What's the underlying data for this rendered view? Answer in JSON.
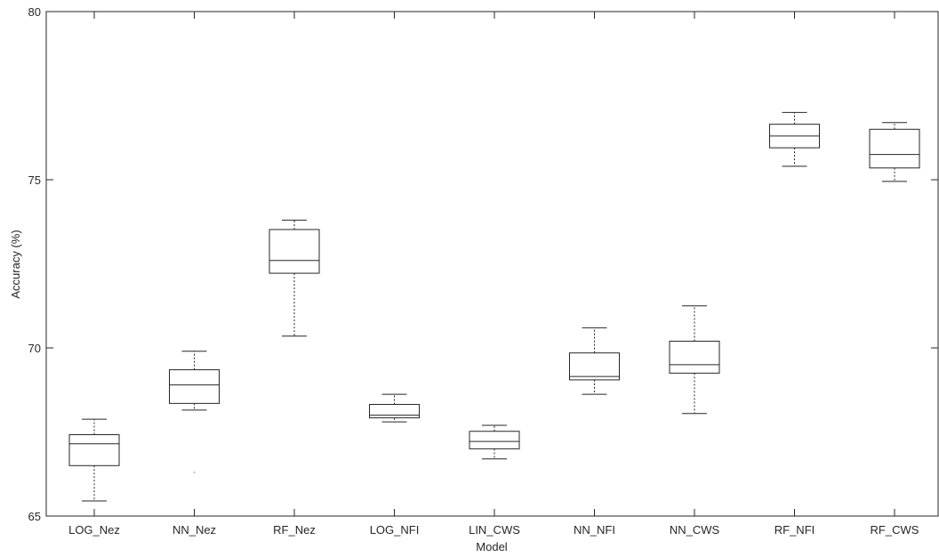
{
  "chart_data": {
    "type": "box",
    "xlabel": "Model",
    "ylabel": "Accuracy (%)",
    "ylim": [
      65,
      80
    ],
    "yticks": [
      65,
      70,
      75,
      80
    ],
    "grid": false,
    "categories": [
      "LOG_Nez",
      "NN_Nez",
      "RF_Nez",
      "LOG_NFI",
      "LIN_CWS",
      "NN_NFI",
      "NN_CWS",
      "RF_NFI",
      "RF_CWS"
    ],
    "boxes": [
      {
        "category": "LOG_Nez",
        "whisker_low": 65.45,
        "q1": 66.5,
        "median": 67.15,
        "q3": 67.42,
        "whisker_high": 67.88,
        "outliers": []
      },
      {
        "category": "NN_Nez",
        "whisker_low": 68.15,
        "q1": 68.35,
        "median": 68.9,
        "q3": 69.35,
        "whisker_high": 69.9,
        "outliers": [
          66.3
        ]
      },
      {
        "category": "RF_Nez",
        "whisker_low": 70.35,
        "q1": 72.22,
        "median": 72.6,
        "q3": 73.52,
        "whisker_high": 73.8,
        "outliers": []
      },
      {
        "category": "LOG_NFI",
        "whisker_low": 67.8,
        "q1": 67.92,
        "median": 68.0,
        "q3": 68.32,
        "whisker_high": 68.62,
        "outliers": []
      },
      {
        "category": "LIN_CWS",
        "whisker_low": 66.7,
        "q1": 67.0,
        "median": 67.22,
        "q3": 67.52,
        "whisker_high": 67.7,
        "outliers": []
      },
      {
        "category": "NN_NFI",
        "whisker_low": 68.62,
        "q1": 69.05,
        "median": 69.15,
        "q3": 69.85,
        "whisker_high": 70.6,
        "outliers": []
      },
      {
        "category": "NN_CWS",
        "whisker_low": 68.05,
        "q1": 69.25,
        "median": 69.5,
        "q3": 70.2,
        "whisker_high": 71.25,
        "outliers": []
      },
      {
        "category": "RF_NFI",
        "whisker_low": 75.4,
        "q1": 75.95,
        "median": 76.3,
        "q3": 76.65,
        "whisker_high": 77.0,
        "outliers": []
      },
      {
        "category": "RF_CWS",
        "whisker_low": 74.95,
        "q1": 75.35,
        "median": 75.75,
        "q3": 76.5,
        "whisker_high": 76.7,
        "outliers": []
      }
    ]
  }
}
